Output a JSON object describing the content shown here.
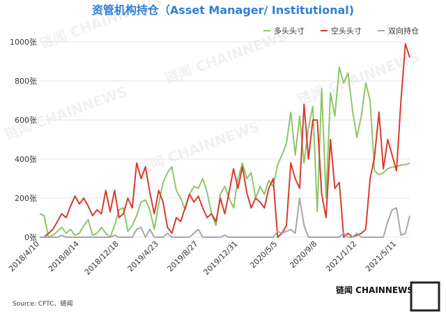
{
  "chart_data": {
    "type": "line",
    "title": "资管机构持仓（Asset Manager/ Institutional)",
    "source": "Source: CFTC、链闻",
    "watermark": "链闻 CHAINNEWS",
    "categories": [
      "2018/4/10",
      null,
      null,
      null,
      null,
      null,
      null,
      null,
      null,
      "2018/8/14",
      null,
      null,
      null,
      null,
      null,
      null,
      null,
      null,
      "2018/12/18",
      null,
      null,
      null,
      null,
      null,
      null,
      null,
      null,
      "2019/4/23",
      null,
      null,
      null,
      null,
      null,
      null,
      null,
      null,
      "2019/8/27",
      null,
      null,
      null,
      null,
      null,
      null,
      null,
      null,
      "2019/12/31",
      null,
      null,
      null,
      null,
      null,
      null,
      null,
      null,
      "2020/5/5",
      null,
      null,
      null,
      null,
      null,
      null,
      null,
      null,
      "2020/9/8",
      null,
      null,
      null,
      null,
      null,
      null,
      null,
      null,
      "2021/1/12",
      null,
      null,
      null,
      null,
      null,
      null,
      null,
      null,
      "2021/5/11",
      null,
      null,
      null
    ],
    "series": [
      {
        "name": "多头头寸",
        "color": "#8cc665",
        "values": [
          120,
          110,
          0,
          10,
          30,
          50,
          20,
          40,
          10,
          20,
          60,
          90,
          10,
          20,
          50,
          20,
          0,
          60,
          140,
          150,
          30,
          60,
          110,
          180,
          190,
          140,
          40,
          170,
          280,
          330,
          360,
          240,
          200,
          140,
          220,
          260,
          250,
          300,
          230,
          120,
          60,
          220,
          260,
          200,
          150,
          300,
          380,
          300,
          330,
          200,
          260,
          220,
          290,
          260,
          370,
          420,
          480,
          640,
          420,
          620,
          380,
          560,
          670,
          130,
          760,
          200,
          740,
          620,
          870,
          790,
          840,
          650,
          510,
          620,
          790,
          700,
          340,
          320,
          330,
          350,
          360,
          360,
          370,
          370,
          380
        ]
      },
      {
        "name": "空头头寸",
        "color": "#d83a2e",
        "values": [
          0,
          0,
          20,
          40,
          80,
          120,
          100,
          160,
          210,
          170,
          200,
          160,
          110,
          140,
          120,
          240,
          130,
          240,
          100,
          120,
          200,
          150,
          380,
          300,
          360,
          230,
          120,
          240,
          180,
          50,
          20,
          100,
          80,
          150,
          220,
          180,
          210,
          150,
          100,
          120,
          80,
          200,
          120,
          230,
          350,
          250,
          360,
          230,
          150,
          200,
          180,
          150,
          250,
          300,
          0,
          20,
          60,
          380,
          300,
          250,
          680,
          400,
          600,
          600,
          220,
          100,
          500,
          250,
          280,
          0,
          20,
          0,
          10,
          20,
          40,
          300,
          410,
          640,
          350,
          500,
          420,
          340,
          700,
          990,
          920
        ]
      },
      {
        "name": "双向持仓",
        "color": "#a6a6a6",
        "values": [
          0,
          0,
          0,
          0,
          0,
          10,
          0,
          0,
          0,
          0,
          0,
          0,
          0,
          0,
          0,
          0,
          0,
          10,
          0,
          0,
          0,
          0,
          40,
          50,
          0,
          40,
          0,
          0,
          0,
          20,
          0,
          0,
          0,
          0,
          0,
          20,
          40,
          0,
          0,
          0,
          0,
          0,
          10,
          0,
          0,
          0,
          0,
          0,
          0,
          0,
          0,
          0,
          0,
          0,
          30,
          20,
          30,
          40,
          20,
          200,
          60,
          0,
          0,
          0,
          0,
          0,
          0,
          0,
          0,
          20,
          0,
          0,
          20,
          0,
          0,
          0,
          0,
          0,
          0,
          80,
          140,
          150,
          10,
          20,
          110
        ]
      }
    ],
    "ylim": [
      0,
      1000
    ],
    "yticks": [
      {
        "value": 0,
        "label": "0张"
      },
      {
        "value": 200,
        "label": "200张"
      },
      {
        "value": 400,
        "label": "400张"
      },
      {
        "value": 600,
        "label": "600张"
      },
      {
        "value": 800,
        "label": "800张"
      },
      {
        "value": 1000,
        "label": "1000张"
      }
    ],
    "grid": true,
    "legend": "top-right"
  }
}
